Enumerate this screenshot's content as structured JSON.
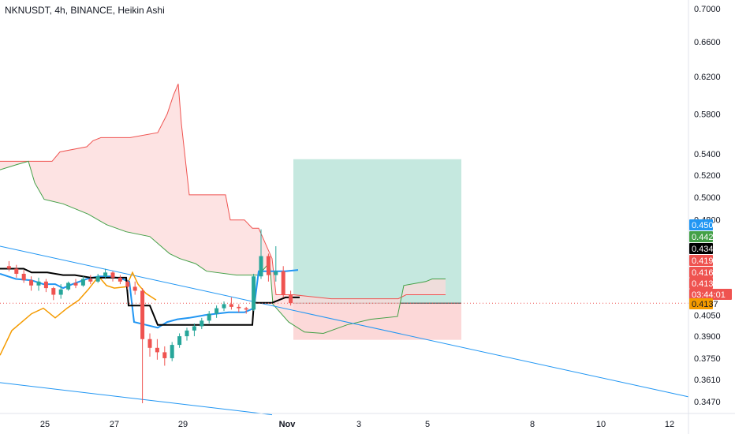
{
  "chart_data": {
    "type": "candlestick",
    "title": "NKNUSDT, 4h, BINANCE, Heikin Ashi",
    "y_axis": {
      "ticks": [
        "0.7000",
        "0.6600",
        "0.6200",
        "0.5800",
        "0.5400",
        "0.5200",
        "0.5000",
        "0.4800",
        "0.4050",
        "0.3900",
        "0.3750",
        "0.3610",
        "0.3470"
      ],
      "scale": "log"
    },
    "x_axis": {
      "ticks": [
        "25",
        "27",
        "29",
        "Nov",
        "3",
        "5",
        "8",
        "10",
        "12"
      ],
      "bold_ticks": [
        "Nov"
      ]
    },
    "price_badges": [
      {
        "value": "0.4509",
        "color": "#2196f3"
      },
      {
        "value": "0.4425",
        "color": "#43a047"
      },
      {
        "value": "0.4342",
        "color": "#000000"
      },
      {
        "value": "0.4194",
        "color": "#ef5350"
      },
      {
        "value": "0.4162",
        "color": "#ef5350"
      },
      {
        "value": "0.4137",
        "color": "#ef5350"
      },
      {
        "value": "03:44:01",
        "color": "#ef5350"
      },
      {
        "value": "0.4137",
        "color": "#f59b00"
      }
    ],
    "colors": {
      "up": "#26a69a",
      "down": "#ef5350",
      "cloud_up": "#d1f0e0",
      "cloud_down": "#fcdada",
      "tenkan": "#2196f3",
      "kijun": "#000000",
      "chikou": "#f59b00",
      "span_a": "#43a047",
      "span_b": "#ef5350",
      "trend": "#2196f3",
      "target": "#b2e0d4",
      "stop": "#fbd1d1"
    },
    "candles": [
      [
        0.442,
        0.446,
        0.438,
        0.44
      ],
      [
        0.44,
        0.443,
        0.433,
        0.436
      ],
      [
        0.436,
        0.439,
        0.429,
        0.431
      ],
      [
        0.431,
        0.434,
        0.423,
        0.427
      ],
      [
        0.427,
        0.433,
        0.423,
        0.43
      ],
      [
        0.43,
        0.432,
        0.422,
        0.425
      ],
      [
        0.425,
        0.426,
        0.416,
        0.42
      ],
      [
        0.42,
        0.428,
        0.417,
        0.424
      ],
      [
        0.424,
        0.43,
        0.423,
        0.429
      ],
      [
        0.429,
        0.432,
        0.425,
        0.427
      ],
      [
        0.427,
        0.434,
        0.426,
        0.432
      ],
      [
        0.432,
        0.435,
        0.428,
        0.43
      ],
      [
        0.43,
        0.436,
        0.429,
        0.434
      ],
      [
        0.434,
        0.44,
        0.432,
        0.437
      ],
      [
        0.437,
        0.438,
        0.43,
        0.433
      ],
      [
        0.433,
        0.435,
        0.428,
        0.43
      ],
      [
        0.43,
        0.431,
        0.424,
        0.426
      ],
      [
        0.426,
        0.43,
        0.42,
        0.423
      ],
      [
        0.423,
        0.425,
        0.346,
        0.388
      ],
      [
        0.388,
        0.392,
        0.376,
        0.382
      ],
      [
        0.382,
        0.388,
        0.374,
        0.379
      ],
      [
        0.379,
        0.383,
        0.37,
        0.375
      ],
      [
        0.375,
        0.386,
        0.373,
        0.384
      ],
      [
        0.384,
        0.392,
        0.382,
        0.39
      ],
      [
        0.39,
        0.396,
        0.387,
        0.394
      ],
      [
        0.394,
        0.399,
        0.39,
        0.397
      ],
      [
        0.397,
        0.403,
        0.395,
        0.401
      ],
      [
        0.401,
        0.408,
        0.399,
        0.406
      ],
      [
        0.406,
        0.412,
        0.403,
        0.41
      ],
      [
        0.41,
        0.415,
        0.408,
        0.413
      ],
      [
        0.413,
        0.418,
        0.409,
        0.411
      ],
      [
        0.411,
        0.413,
        0.407,
        0.41
      ],
      [
        0.41,
        0.411,
        0.406,
        0.409
      ],
      [
        0.409,
        0.436,
        0.408,
        0.434
      ],
      [
        0.434,
        0.472,
        0.432,
        0.45
      ],
      [
        0.45,
        0.452,
        0.43,
        0.435
      ],
      [
        0.435,
        0.458,
        0.43,
        0.438
      ],
      [
        0.438,
        0.442,
        0.418,
        0.42
      ],
      [
        0.42,
        0.423,
        0.412,
        0.4137
      ]
    ]
  }
}
